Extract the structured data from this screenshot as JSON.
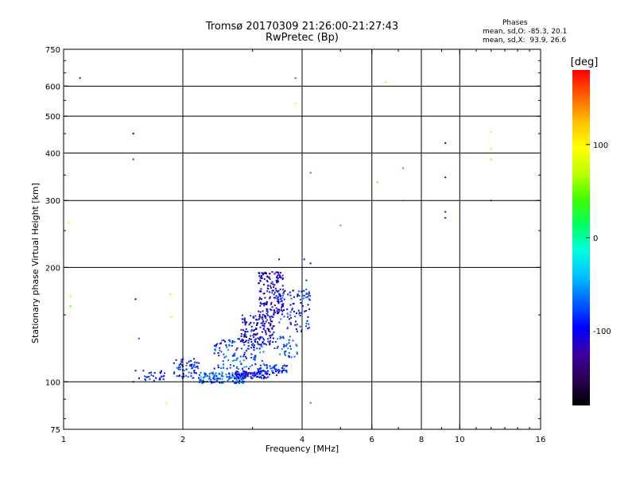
{
  "header": {
    "title_line1": "Tromsø 20170309 21:26:00-21:27:43",
    "title_line2": "RwPretec (Bp)",
    "stats_title": "Phases",
    "stats_o": "mean, sd,O: -85.3, 20.1",
    "stats_x": "mean, sd,X:  93.9, 26.6"
  },
  "colors": {
    "grid": "#000000",
    "scale": [
      "#000000",
      "#2a0050",
      "#3c00a0",
      "#0000ff",
      "#0060ff",
      "#00c0ff",
      "#00ffe0",
      "#00ff60",
      "#40ff00",
      "#c0ff00",
      "#ffff00",
      "#ffc000",
      "#ff6000",
      "#ff0000"
    ]
  },
  "chart_data": {
    "type": "scatter",
    "xlabel": "Frequency [MHz]",
    "ylabel": "Stationary phase Virtual Height [km]",
    "xscale": "log",
    "yscale": "log",
    "xlim": [
      1,
      16
    ],
    "ylim": [
      75,
      750
    ],
    "x_ticks": [
      1,
      2,
      4,
      6,
      8,
      10,
      16
    ],
    "x_tick_labels": [
      "1",
      "2",
      "4",
      "6",
      "8",
      "10",
      "16"
    ],
    "x_gridlines": [
      2,
      4,
      6,
      8,
      10
    ],
    "y_ticks": [
      75,
      100,
      200,
      300,
      400,
      500,
      600,
      750
    ],
    "y_tick_labels": [
      "75",
      "100",
      "200",
      "300",
      "400",
      "500",
      "600",
      "750"
    ],
    "y_gridlines": [
      100,
      200,
      300,
      400,
      500,
      600
    ],
    "grid": true,
    "colorbar": {
      "label": "[deg]",
      "range": [
        -180,
        180
      ],
      "ticks": [
        100,
        0,
        -100
      ],
      "tick_labels": [
        "100",
        "0",
        "-100"
      ]
    },
    "scatter_points": [
      [
        1.1,
        630,
        -90
      ],
      [
        1.5,
        450,
        -100
      ],
      [
        1.5,
        385,
        -80
      ],
      [
        1.52,
        165,
        -100
      ],
      [
        1.55,
        130,
        -70
      ],
      [
        1.52,
        107,
        -110
      ],
      [
        1.5,
        100,
        -80
      ],
      [
        1.86,
        170,
        110
      ],
      [
        1.87,
        148,
        110
      ],
      [
        1.82,
        88,
        110
      ],
      [
        1.03,
        262,
        100
      ],
      [
        1.04,
        168,
        110
      ],
      [
        1.04,
        158,
        40
      ],
      [
        3.85,
        630,
        -60
      ],
      [
        3.85,
        540,
        110
      ],
      [
        4.2,
        355,
        -60
      ],
      [
        4.2,
        205,
        -100
      ],
      [
        4.05,
        210,
        -110
      ],
      [
        5,
        258,
        150
      ],
      [
        6.2,
        335,
        50
      ],
      [
        6.5,
        615,
        110
      ],
      [
        7.2,
        365,
        150
      ],
      [
        7.2,
        300,
        110
      ],
      [
        9.2,
        425,
        -100
      ],
      [
        9.2,
        345,
        -100
      ],
      [
        9.2,
        280,
        -120
      ],
      [
        9.2,
        270,
        -90
      ],
      [
        12,
        455,
        110
      ],
      [
        12,
        410,
        110
      ],
      [
        12,
        385,
        60
      ],
      [
        12,
        300,
        -70
      ],
      [
        4.2,
        88,
        -60
      ],
      [
        3.5,
        210,
        -130
      ],
      [
        4.1,
        185,
        -90
      ],
      [
        4.1,
        175,
        -70
      ],
      [
        1.9,
        112,
        -110
      ],
      [
        1.95,
        108,
        -90
      ],
      [
        2.0,
        110,
        -100
      ],
      [
        2.05,
        112,
        -120
      ]
    ],
    "clusters": [
      {
        "name": "",
        "x": [
          1.55,
          1.8
        ],
        "y": [
          100,
          108
        ],
        "n": 28,
        "phase": [
          -110,
          -70
        ]
      },
      {
        "name": "",
        "x": [
          1.9,
          2.2
        ],
        "y": [
          102,
          115
        ],
        "n": 60,
        "phase": [
          -120,
          -60
        ]
      },
      {
        "name": "",
        "x": [
          2.2,
          2.9
        ],
        "y": [
          99,
          106
        ],
        "n": 140,
        "phase": [
          -100,
          -40
        ]
      },
      {
        "name": "",
        "x": [
          2.7,
          3.3
        ],
        "y": [
          102,
          107
        ],
        "n": 90,
        "phase": [
          -120,
          -80
        ]
      },
      {
        "name": "",
        "x": [
          3.1,
          3.7
        ],
        "y": [
          104,
          111
        ],
        "n": 60,
        "phase": [
          -110,
          -60
        ]
      },
      {
        "name": "",
        "x": [
          2.4,
          3.2
        ],
        "y": [
          108,
          130
        ],
        "n": 120,
        "phase": [
          -110,
          -50
        ]
      },
      {
        "name": "",
        "x": [
          2.8,
          3.4
        ],
        "y": [
          125,
          150
        ],
        "n": 160,
        "phase": [
          -140,
          -70
        ]
      },
      {
        "name": "",
        "x": [
          3.1,
          3.6
        ],
        "y": [
          150,
          195
        ],
        "n": 170,
        "phase": [
          -140,
          -80
        ]
      },
      {
        "name": "",
        "x": [
          3.5,
          4.2
        ],
        "y": [
          135,
          175
        ],
        "n": 90,
        "phase": [
          -110,
          -60
        ]
      },
      {
        "name": "",
        "x": [
          3.4,
          3.9
        ],
        "y": [
          116,
          132
        ],
        "n": 40,
        "phase": [
          -90,
          -50
        ]
      }
    ]
  }
}
